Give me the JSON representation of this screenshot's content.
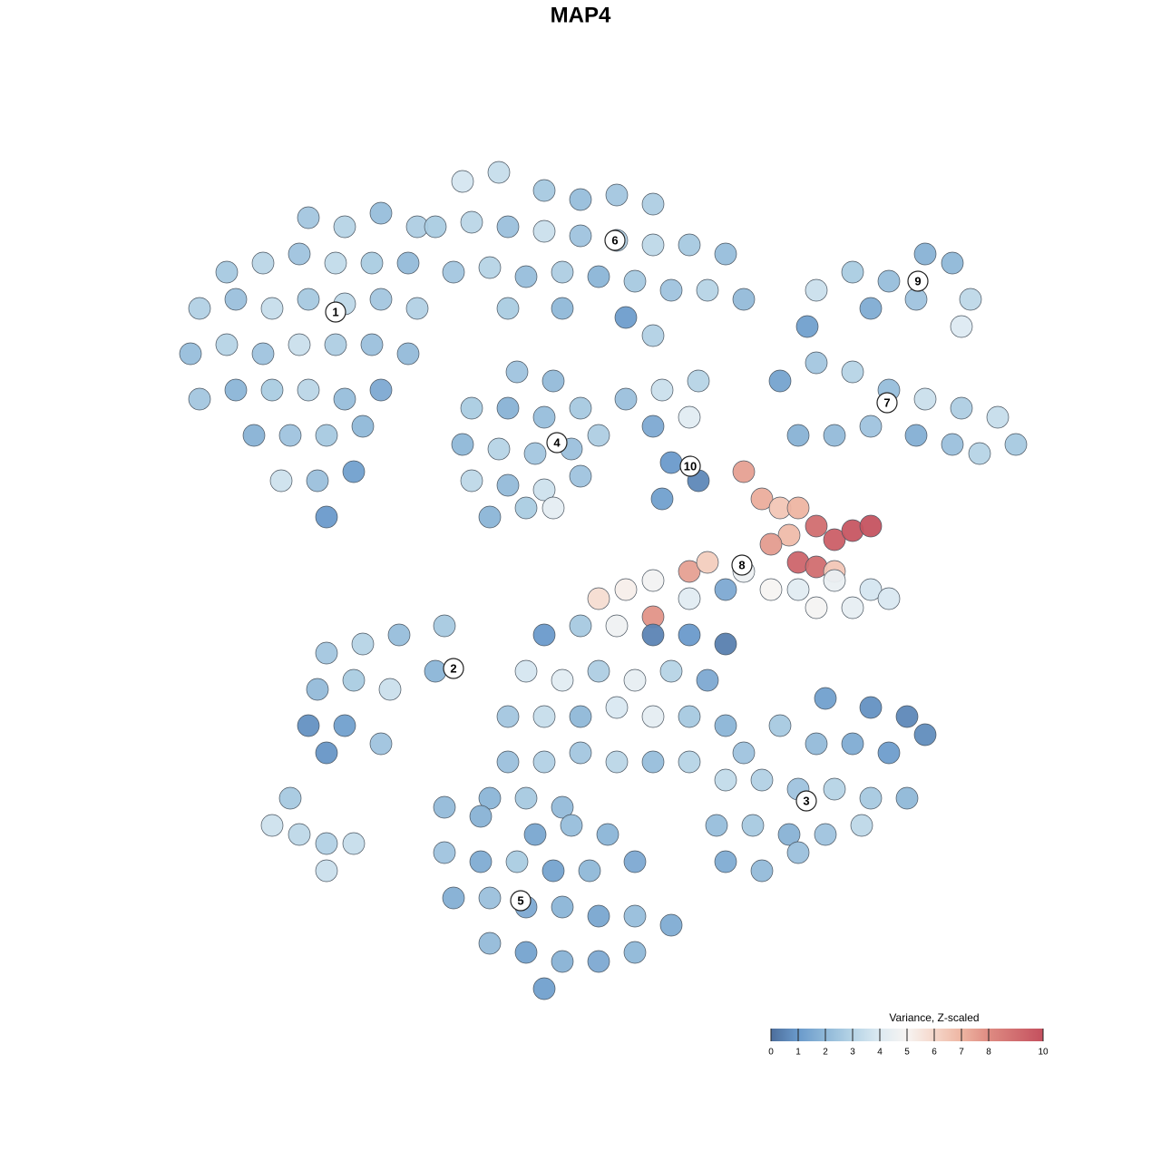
{
  "chart_data": {
    "type": "scatter",
    "title": "MAP4",
    "xlim": [
      0,
      960
    ],
    "ylim": [
      0,
      960
    ],
    "x": [
      180,
      220,
      260,
      300,
      90,
      130,
      170,
      210,
      250,
      290,
      60,
      100,
      140,
      180,
      220,
      260,
      300,
      50,
      90,
      130,
      170,
      210,
      250,
      290,
      60,
      100,
      140,
      180,
      220,
      260,
      120,
      160,
      200,
      240,
      150,
      190,
      230,
      200,
      350,
      390,
      440,
      480,
      520,
      560,
      320,
      360,
      400,
      440,
      480,
      520,
      560,
      600,
      640,
      340,
      380,
      420,
      460,
      500,
      540,
      580,
      620,
      660,
      400,
      460,
      530,
      560,
      410,
      450,
      360,
      400,
      440,
      480,
      350,
      390,
      430,
      470,
      500,
      360,
      400,
      440,
      480,
      380,
      420,
      450,
      530,
      570,
      610,
      560,
      600,
      580,
      610,
      570,
      740,
      780,
      820,
      860,
      890,
      910,
      800,
      850,
      900,
      730,
      700,
      740,
      780,
      820,
      860,
      900,
      940,
      960,
      720,
      760,
      800,
      850,
      890,
      920,
      660,
      680,
      700,
      720,
      710,
      740,
      760,
      780,
      800,
      720,
      740,
      690,
      760,
      500,
      530,
      560,
      600,
      620,
      660,
      690,
      720,
      760,
      800,
      740,
      780,
      820,
      520,
      560,
      600,
      640,
      440,
      480,
      560,
      600,
      640,
      420,
      460,
      500,
      540,
      580,
      620,
      400,
      440,
      480,
      520,
      560,
      600,
      640,
      400,
      440,
      480,
      520,
      560,
      600,
      660,
      380,
      420,
      460,
      200,
      240,
      280,
      330,
      190,
      230,
      270,
      320,
      180,
      220,
      260,
      200,
      750,
      800,
      840,
      860,
      700,
      740,
      780,
      820,
      640,
      680,
      720,
      760,
      800,
      840,
      630,
      670,
      710,
      750,
      790,
      640,
      680,
      720,
      330,
      370,
      430,
      470,
      510,
      330,
      370,
      410,
      450,
      490,
      540,
      340,
      380,
      420,
      460,
      500,
      540,
      580,
      380,
      420,
      460,
      500,
      540,
      440,
      140,
      170,
      200,
      230,
      200,
      160
    ],
    "y": [
      880,
      870,
      885,
      870,
      820,
      830,
      840,
      830,
      830,
      830,
      780,
      790,
      780,
      790,
      785,
      790,
      780,
      730,
      740,
      730,
      740,
      740,
      740,
      730,
      680,
      690,
      690,
      690,
      680,
      690,
      640,
      640,
      640,
      650,
      590,
      590,
      600,
      550,
      920,
      930,
      910,
      900,
      905,
      895,
      870,
      875,
      870,
      865,
      860,
      855,
      850,
      850,
      840,
      820,
      825,
      815,
      820,
      815,
      810,
      800,
      800,
      790,
      780,
      780,
      770,
      750,
      710,
      700,
      670,
      670,
      660,
      670,
      630,
      625,
      620,
      625,
      640,
      590,
      585,
      580,
      595,
      550,
      560,
      560,
      680,
      690,
      700,
      650,
      660,
      610,
      590,
      570,
      800,
      820,
      810,
      840,
      830,
      790,
      780,
      790,
      760,
      760,
      700,
      720,
      710,
      690,
      680,
      670,
      660,
      630,
      640,
      640,
      650,
      640,
      630,
      620,
      600,
      570,
      560,
      560,
      530,
      540,
      525,
      535,
      540,
      500,
      495,
      520,
      490,
      460,
      470,
      480,
      490,
      500,
      490,
      470,
      470,
      480,
      470,
      450,
      450,
      460,
      430,
      440,
      460,
      470,
      420,
      430,
      420,
      420,
      410,
      380,
      370,
      380,
      370,
      380,
      370,
      330,
      330,
      330,
      340,
      330,
      330,
      320,
      280,
      280,
      290,
      280,
      280,
      280,
      290,
      240,
      240,
      230,
      400,
      410,
      420,
      430,
      360,
      370,
      360,
      380,
      320,
      320,
      300,
      290,
      350,
      340,
      330,
      310,
      320,
      300,
      300,
      290,
      260,
      260,
      250,
      250,
      240,
      240,
      210,
      210,
      200,
      200,
      210,
      170,
      160,
      180,
      230,
      220,
      200,
      210,
      200,
      180,
      170,
      170,
      160,
      160,
      170,
      130,
      130,
      120,
      120,
      110,
      110,
      100,
      80,
      70,
      60,
      60,
      70,
      30,
      210,
      200,
      190,
      190,
      160,
      240
    ],
    "values": [
      2.5,
      3,
      2.2,
      2.8,
      2.6,
      3.1,
      2.4,
      3.3,
      2.7,
      2.1,
      2.9,
      2.3,
      3.4,
      2.6,
      3.2,
      2.5,
      2.9,
      2.2,
      3.0,
      2.4,
      3.5,
      2.8,
      2.3,
      2.1,
      2.5,
      1.9,
      2.7,
      3.1,
      2.2,
      1.5,
      1.8,
      2.4,
      2.6,
      2.0,
      3.6,
      2.3,
      1.2,
      1.0,
      3.8,
      3.4,
      2.6,
      2.2,
      2.5,
      2.8,
      2.7,
      3.1,
      2.3,
      3.5,
      2.4,
      2.9,
      3.2,
      2.6,
      2.2,
      2.5,
      3.0,
      2.2,
      2.8,
      1.9,
      2.6,
      2.4,
      3.0,
      2.1,
      2.7,
      2.0,
      1.1,
      2.9,
      2.4,
      2.1,
      2.7,
      1.8,
      2.2,
      2.6,
      2.0,
      3.0,
      2.5,
      2.3,
      2.8,
      3.2,
      2.1,
      3.6,
      2.4,
      1.9,
      2.7,
      4.3,
      2.3,
      3.5,
      3.0,
      1.5,
      4.2,
      1.0,
      0.6,
      1.2,
      3.5,
      2.7,
      2.2,
      1.8,
      2.0,
      3.2,
      1.6,
      2.4,
      4.0,
      1.2,
      1.3,
      2.5,
      3.0,
      2.2,
      3.5,
      2.8,
      3.4,
      2.6,
      1.8,
      2.1,
      2.4,
      1.7,
      2.3,
      3.0,
      7.5,
      7.2,
      6.5,
      7.0,
      6.8,
      9.0,
      9.5,
      9.8,
      9.9,
      9.3,
      9.0,
      7.6,
      6.5,
      5.8,
      5.2,
      4.8,
      7.5,
      6.3,
      4.6,
      5.0,
      4.2,
      4.5,
      3.8,
      4.9,
      4.4,
      3.9,
      4.7,
      7.8,
      4.2,
      1.5,
      1.0,
      2.6,
      0.5,
      1.0,
      0.4,
      3.8,
      4.2,
      2.8,
      4.4,
      3.0,
      1.5,
      2.5,
      3.4,
      2.0,
      3.9,
      4.3,
      2.6,
      1.9,
      2.3,
      2.9,
      2.5,
      3.1,
      2.2,
      3.0,
      2.4,
      1.9,
      2.6,
      2.1,
      2.5,
      3.0,
      2.2,
      2.6,
      2.1,
      2.7,
      3.5,
      1.9,
      0.8,
      1.2,
      2.4,
      0.9,
      1.2,
      0.8,
      0.6,
      0.7,
      2.6,
      2.1,
      1.6,
      1.1,
      3.3,
      2.9,
      2.4,
      3.0,
      2.6,
      2.0,
      2.2,
      2.6,
      1.8,
      2.4,
      3.2,
      1.6,
      2.1,
      2.3,
      2.1,
      1.8,
      1.4,
      2.2,
      1.9,
      2.4,
      1.6,
      2.7,
      1.3,
      2.0,
      1.5,
      1.7,
      2.3,
      1.5,
      1.9,
      1.4,
      2.2,
      1.6,
      2.1,
      1.3,
      1.8,
      1.5,
      2.0,
      1.2,
      3.6,
      3.2,
      2.9,
      3.4,
      3.5,
      2.6
    ],
    "clusters": {
      "labels": [
        "1",
        "2",
        "3",
        "4",
        "5",
        "6",
        "7",
        "8",
        "9",
        "10"
      ],
      "x": [
        210,
        340,
        729,
        454,
        414,
        518,
        818,
        658,
        852,
        601
      ],
      "y": [
        776,
        383,
        237,
        632,
        127,
        855,
        676,
        497,
        810,
        606
      ]
    },
    "colorbar": {
      "title": "Variance, Z-scaled",
      "lim": [
        0,
        10
      ],
      "ticks": [
        0,
        1,
        2,
        3,
        4,
        5,
        6,
        7,
        8,
        10
      ],
      "colors": [
        "#4d6e9c",
        "#6a9acb",
        "#8fb8d8",
        "#b6d4e6",
        "#ddeaf2",
        "#f7f4f2",
        "#f5d7ca",
        "#eeb5a2",
        "#de8b82",
        "#c4505e"
      ]
    }
  }
}
